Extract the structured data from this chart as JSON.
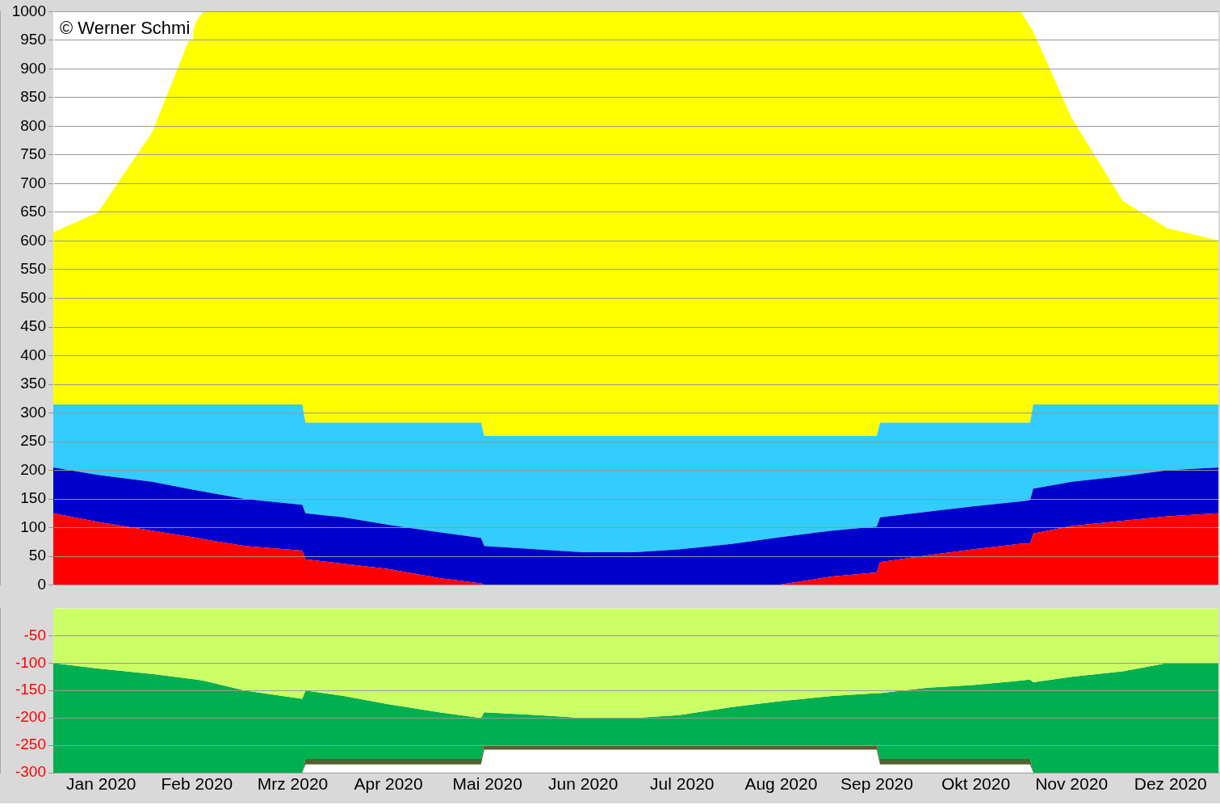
{
  "chart_data": [
    {
      "type": "area",
      "stacked": true,
      "grid": "y",
      "legend": false,
      "tick_labels": "y",
      "annotations": [
        "© Werner Schmi"
      ],
      "x": [
        "2020-01-01",
        "2020-01-15",
        "2020-02-01",
        "2020-02-15",
        "2020-02-17",
        "2020-03-01",
        "2020-03-19",
        "2020-03-20",
        "2020-04-01",
        "2020-04-15",
        "2020-05-01",
        "2020-05-14",
        "2020-05-15",
        "2020-06-01",
        "2020-06-15",
        "2020-07-01",
        "2020-07-15",
        "2020-08-01",
        "2020-08-15",
        "2020-09-01",
        "2020-09-15",
        "2020-09-16",
        "2020-10-01",
        "2020-10-15",
        "2020-10-30",
        "2020-11-02",
        "2020-11-03",
        "2020-11-15",
        "2020-12-01",
        "2020-12-15",
        "2020-12-31"
      ],
      "xlim": [
        "2020-01-01",
        "2020-12-31"
      ],
      "ylim": [
        0,
        1000
      ],
      "yticks": [
        0,
        50,
        100,
        150,
        200,
        250,
        300,
        350,
        400,
        450,
        500,
        550,
        600,
        650,
        700,
        750,
        800,
        850,
        900,
        950,
        1000
      ],
      "series": [
        {
          "color": "#ff0000",
          "values": [
            125,
            110,
            95,
            82,
            80,
            68,
            60,
            45,
            37,
            28,
            12,
            3,
            0,
            0,
            0,
            0,
            0,
            0,
            0,
            15,
            22,
            40,
            52,
            62,
            72,
            72,
            90,
            103,
            112,
            120,
            125
          ]
        },
        {
          "color": "#0000cc",
          "values": [
            80,
            82,
            85,
            83,
            83,
            82,
            80,
            80,
            81,
            77,
            80,
            79,
            68,
            62,
            57,
            57,
            62,
            72,
            83,
            80,
            80,
            78,
            76,
            75,
            74,
            76,
            78,
            77,
            78,
            80,
            80
          ]
        },
        {
          "color": "#33ccff",
          "values": [
            110,
            123,
            135,
            150,
            152,
            165,
            175,
            158,
            165,
            178,
            191,
            201,
            192,
            198,
            203,
            203,
            198,
            188,
            177,
            165,
            158,
            165,
            155,
            146,
            137,
            135,
            147,
            135,
            125,
            115,
            110
          ]
        },
        {
          "color": "#ffff00",
          "values": [
            300,
            335,
            475,
            670,
            685,
            685,
            685,
            717,
            717,
            717,
            717,
            717,
            740,
            740,
            740,
            740,
            740,
            740,
            740,
            740,
            740,
            717,
            717,
            717,
            717,
            692,
            650,
            500,
            355,
            307,
            286
          ]
        }
      ]
    },
    {
      "type": "area",
      "stacked": true,
      "grid": "y",
      "legend": false,
      "x": [
        "2020-01-01",
        "2020-01-15",
        "2020-02-01",
        "2020-02-15",
        "2020-02-17",
        "2020-03-01",
        "2020-03-19",
        "2020-03-20",
        "2020-04-01",
        "2020-04-15",
        "2020-05-01",
        "2020-05-14",
        "2020-05-15",
        "2020-06-01",
        "2020-06-15",
        "2020-07-01",
        "2020-07-15",
        "2020-08-01",
        "2020-08-15",
        "2020-09-01",
        "2020-09-15",
        "2020-09-16",
        "2020-10-01",
        "2020-10-15",
        "2020-10-30",
        "2020-11-02",
        "2020-11-03",
        "2020-11-15",
        "2020-12-01",
        "2020-12-15",
        "2020-12-31"
      ],
      "xlim": [
        "2020-01-01",
        "2020-12-31"
      ],
      "xticks": [
        {
          "value": "2020-01-16",
          "label": "Jan 2020"
        },
        {
          "value": "2020-02-15",
          "label": "Feb 2020"
        },
        {
          "value": "2020-03-16",
          "label": "Mrz 2020"
        },
        {
          "value": "2020-04-15",
          "label": "Apr 2020"
        },
        {
          "value": "2020-05-16",
          "label": "Mai 2020"
        },
        {
          "value": "2020-06-15",
          "label": "Jun 2020"
        },
        {
          "value": "2020-07-16",
          "label": "Jul 2020"
        },
        {
          "value": "2020-08-16",
          "label": "Aug 2020"
        },
        {
          "value": "2020-09-15",
          "label": "Sep 2020"
        },
        {
          "value": "2020-10-16",
          "label": "Okt 2020"
        },
        {
          "value": "2020-11-15",
          "label": "Nov 2020"
        },
        {
          "value": "2020-12-16",
          "label": "Dez 2020"
        }
      ],
      "ylim": [
        -300,
        0
      ],
      "yticks": [
        -300,
        -250,
        -200,
        -150,
        -100,
        -50
      ],
      "series": [
        {
          "color": "#ccff66",
          "values": [
            -100,
            -110,
            -120,
            -130,
            -132,
            -150,
            -165,
            -150,
            -160,
            -175,
            -190,
            -200,
            -190,
            -195,
            -200,
            -200,
            -195,
            -180,
            -170,
            -160,
            -155,
            -155,
            -145,
            -140,
            -132,
            -130,
            -135,
            -125,
            -115,
            -100,
            -100
          ]
        },
        {
          "color": "#00b050",
          "values": [
            -200,
            -190,
            -180,
            -170,
            -168,
            -150,
            -135,
            -125,
            -115,
            -100,
            -85,
            -75,
            -60,
            -55,
            -50,
            -50,
            -55,
            -70,
            -80,
            -90,
            -95,
            -120,
            -130,
            -135,
            -143,
            -145,
            -165,
            -175,
            -185,
            -200,
            -200
          ]
        },
        {
          "color": "#556030",
          "values": [
            0,
            0,
            0,
            0,
            0,
            0,
            0,
            -10,
            -10,
            -10,
            -10,
            -10,
            -8,
            -8,
            -8,
            -8,
            -8,
            -8,
            -8,
            -8,
            -8,
            -10,
            -10,
            -10,
            -10,
            -10,
            0,
            0,
            0,
            0,
            0
          ]
        }
      ]
    }
  ]
}
